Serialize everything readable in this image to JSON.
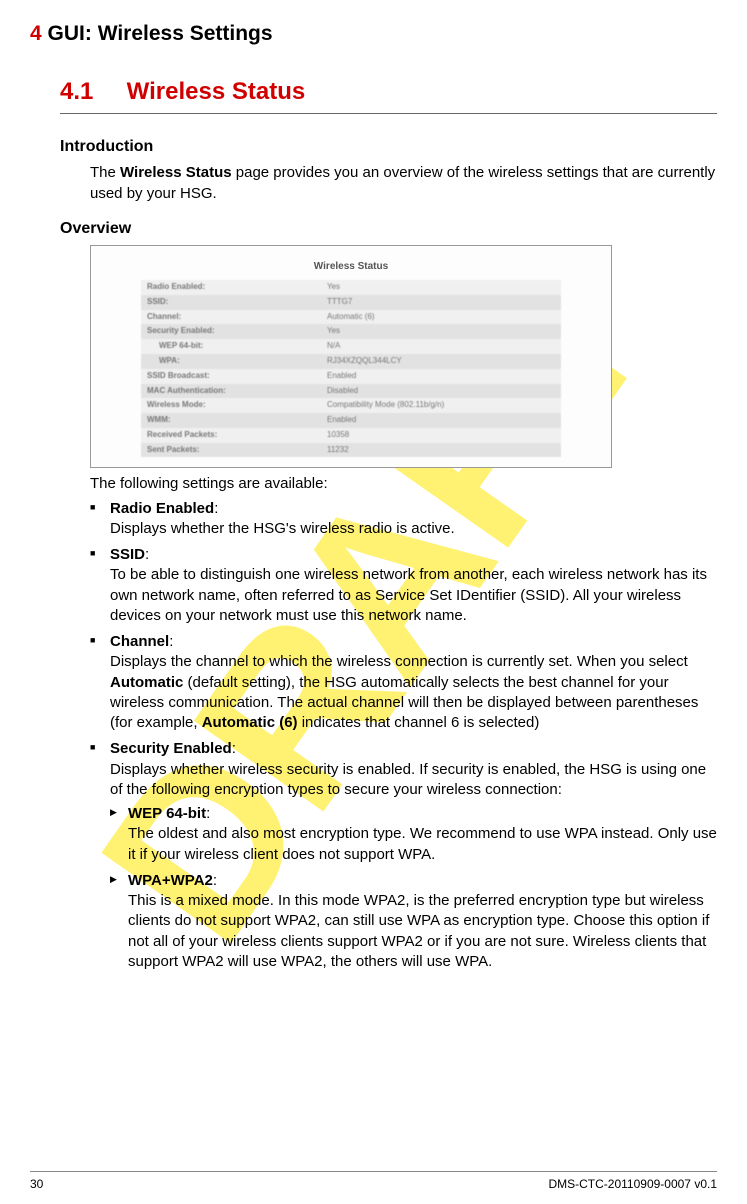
{
  "watermark": "DRAFT",
  "chapter": {
    "num": "4",
    "title": "GUI: Wireless Settings"
  },
  "section": {
    "num": "4.1",
    "title": "Wireless Status"
  },
  "intro": {
    "heading": "Introduction",
    "pre": "The ",
    "bold": "Wireless Status",
    "post": " page provides you an overview of the wireless settings that are currently used by your HSG."
  },
  "overview": {
    "heading": "Overview",
    "screenshot_title": "Wireless Status",
    "rows": [
      {
        "k": "Radio Enabled:",
        "v": "Yes",
        "indent": false
      },
      {
        "k": "SSID:",
        "v": "TTTG7",
        "indent": false
      },
      {
        "k": "Channel:",
        "v": "Automatic (6)",
        "indent": false
      },
      {
        "k": "Security Enabled:",
        "v": "Yes",
        "indent": false
      },
      {
        "k": "WEP 64-bit:",
        "v": "N/A",
        "indent": true
      },
      {
        "k": "WPA:",
        "v": "RJ34XZQQL344LCY",
        "indent": true
      },
      {
        "k": "SSID Broadcast:",
        "v": "Enabled",
        "indent": false
      },
      {
        "k": "MAC Authentication:",
        "v": "Disabled",
        "indent": false
      },
      {
        "k": "Wireless Mode:",
        "v": "Compatibility Mode (802.11b/g/n)",
        "indent": false
      },
      {
        "k": "WMM:",
        "v": "Enabled",
        "indent": false
      },
      {
        "k": "Received Packets:",
        "v": "10358",
        "indent": false
      },
      {
        "k": "Sent Packets:",
        "v": "11232",
        "indent": false
      }
    ],
    "caption": "The following settings are available:"
  },
  "items": {
    "radio": {
      "label": "Radio Enabled",
      "desc": "Displays whether the HSG's wireless radio is active."
    },
    "ssid": {
      "label": "SSID",
      "desc": "To be able to distinguish one wireless network from another, each wireless network has its own network name, often referred to as Service Set IDentifier (SSID). All your wireless devices on your network must use this network name."
    },
    "channel": {
      "label": "Channel",
      "desc_pre": "Displays the channel to which the wireless connection is currently set. When you select ",
      "auto": "Automatic",
      "desc_mid": " (default setting), the HSG automatically selects the best channel for your wireless communication. The actual channel will then be displayed between parentheses (for example, ",
      "auto6": "Automatic (6)",
      "desc_post": " indicates that channel 6 is selected)"
    },
    "security": {
      "label": "Security Enabled",
      "desc": "Displays whether wireless security is enabled. If security is enabled, the HSG is using one of the following encryption types to secure your wireless connection:",
      "wep": {
        "label": "WEP 64-bit",
        "desc": "The oldest and also most encryption type. We recommend to use WPA instead. Only use it if your wireless client does not support WPA."
      },
      "wpa": {
        "label": "WPA+WPA2",
        "desc": "This is a mixed mode. In this mode WPA2, is the preferred encryption type but wireless clients do not support WPA2, can still use WPA as encryption type. Choose this option if not all of your wireless clients support WPA2 or if you are not sure. Wireless clients that support WPA2 will use WPA2, the others will use WPA."
      }
    }
  },
  "footer": {
    "page": "30",
    "docid": "DMS-CTC-20110909-0007 v0.1"
  },
  "colors": {
    "accent_red": "#d10000",
    "watermark": "#ffe600",
    "text": "#000000",
    "rule": "#666666"
  }
}
